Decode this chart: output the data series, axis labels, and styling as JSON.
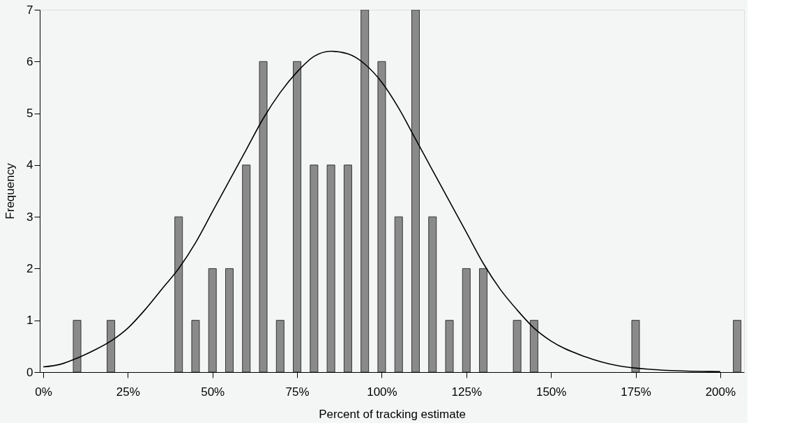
{
  "chart_data": {
    "type": "bar",
    "xlabel": "Percent of tracking estimate",
    "ylabel": "Frequency",
    "x": [
      10,
      20,
      40,
      45,
      50,
      55,
      60,
      65,
      70,
      75,
      80,
      85,
      90,
      95,
      100,
      105,
      110,
      115,
      120,
      125,
      130,
      140,
      145,
      175,
      205
    ],
    "series": [
      {
        "color": "#8a8a8a",
        "values": [
          1,
          1,
          3,
          1,
          2,
          2,
          4,
          6,
          1,
          6,
          4,
          4,
          4,
          7,
          6,
          3,
          7,
          3,
          1,
          2,
          2,
          1,
          1,
          1,
          1
        ]
      },
      {
        "type": "line",
        "color": "#000000",
        "x": [
          0,
          5,
          10,
          15,
          20,
          25,
          30,
          35,
          40,
          45,
          50,
          55,
          60,
          65,
          70,
          75,
          80,
          85,
          90,
          95,
          100,
          105,
          110,
          115,
          120,
          125,
          130,
          135,
          140,
          145,
          150,
          160,
          170,
          180,
          190,
          200
        ],
        "values": [
          0.1,
          0.15,
          0.27,
          0.42,
          0.6,
          0.85,
          1.2,
          1.6,
          2.0,
          2.5,
          3.1,
          3.7,
          4.3,
          4.9,
          5.4,
          5.8,
          6.1,
          6.2,
          6.15,
          5.95,
          5.6,
          5.1,
          4.5,
          3.9,
          3.3,
          2.7,
          2.1,
          1.6,
          1.2,
          0.85,
          0.6,
          0.3,
          0.12,
          0.05,
          0.02,
          0.01
        ]
      }
    ],
    "xlim": [
      0,
      206
    ],
    "xticks": [
      {
        "value": 0,
        "label": "0%"
      },
      {
        "value": 25,
        "label": "25%"
      },
      {
        "value": 50,
        "label": "50%"
      },
      {
        "value": 75,
        "label": "75%"
      },
      {
        "value": 100,
        "label": "100%"
      },
      {
        "value": 125,
        "label": "125%"
      },
      {
        "value": 150,
        "label": "150%"
      },
      {
        "value": 175,
        "label": "175%"
      },
      {
        "value": 200,
        "label": "200%"
      }
    ],
    "ylim": [
      0,
      7
    ],
    "yticks": [
      0,
      1,
      2,
      3,
      4,
      5,
      6,
      7
    ],
    "grid": false
  }
}
